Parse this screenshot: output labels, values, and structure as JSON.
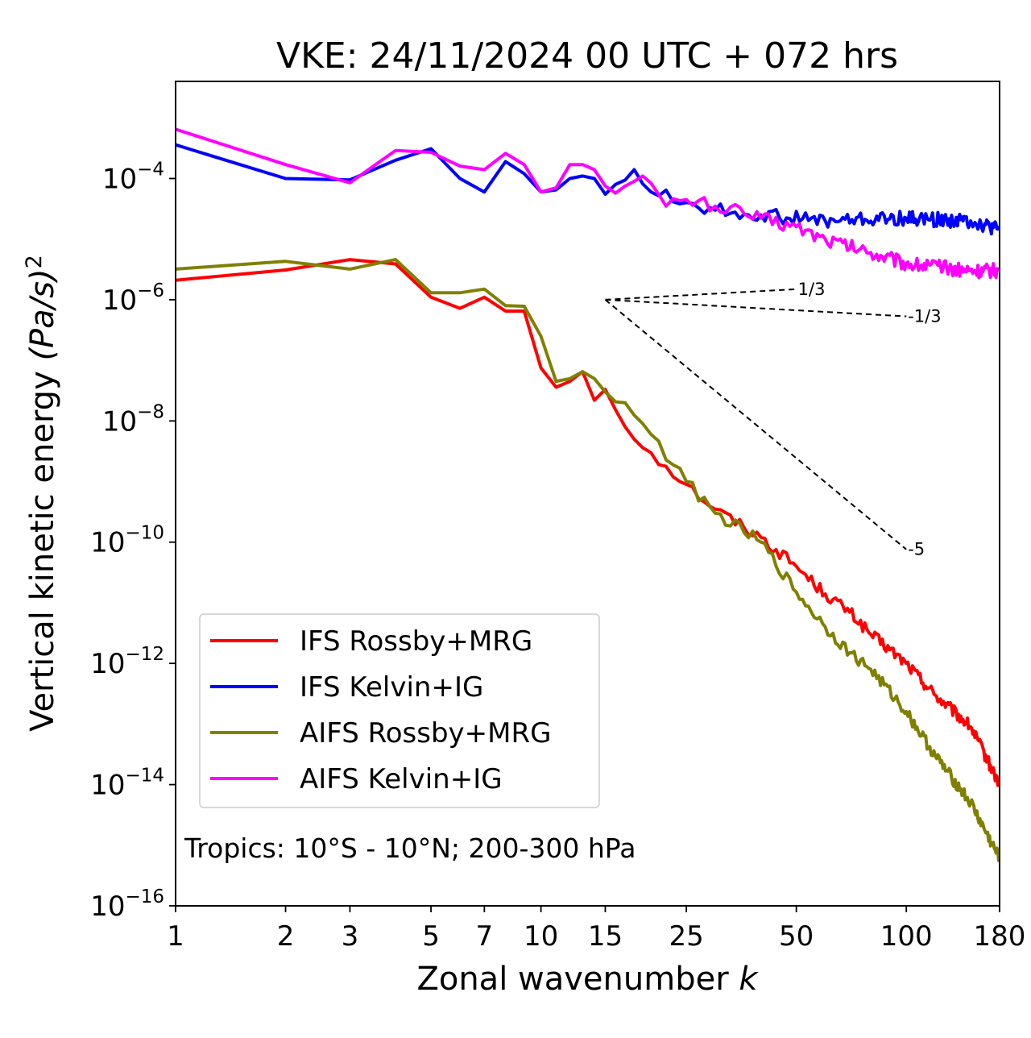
{
  "chart_data": {
    "type": "line",
    "title": "VKE: 24/11/2024 00 UTC + 072 hrs",
    "xlabel": "Zonal wavenumber",
    "xlabel_var": "k",
    "ylabel": "Vertical kinetic energy",
    "ylabel_unit": "(Pa/s)",
    "ylabel_unit_exp": "2",
    "x_scale": "log",
    "y_scale": "log",
    "xlim": [
      1,
      180
    ],
    "ylim": [
      1e-16,
      0.004
    ],
    "xticks": [
      1,
      2,
      3,
      5,
      7,
      10,
      15,
      25,
      50,
      100,
      180
    ],
    "xtick_labels": [
      "1",
      "2",
      "3",
      "5",
      "7",
      "10",
      "15",
      "25",
      "50",
      "100",
      "180"
    ],
    "yticks": [
      -4,
      -6,
      -8,
      -10,
      -12,
      -14,
      -16
    ],
    "ytick_base": "10",
    "ytick_exps": [
      "−4",
      "−6",
      "−8",
      "−10",
      "−12",
      "−14",
      "−16"
    ],
    "annotation": "Tropics: 10°S - 10°N; 200-300 hPa",
    "legend_position": "lower-left",
    "reference_lines": [
      {
        "label": "1/3",
        "slope": 0.3333,
        "x_start": 15,
        "x_end": 50,
        "y_start": 1e-06
      },
      {
        "label": "-1/3",
        "slope": -0.3333,
        "x_start": 15,
        "x_end": 100,
        "y_start": 1e-06
      },
      {
        "label": "-5",
        "slope": -5,
        "x_start": 15,
        "x_end": 100,
        "y_start": 1e-06
      }
    ],
    "series": [
      {
        "name": "IFS Rossby+MRG",
        "color": "#ff0000",
        "anchors": [
          [
            1,
            2.1e-06
          ],
          [
            2,
            3.1e-06
          ],
          [
            3,
            4.6e-06
          ],
          [
            4,
            3.9e-06
          ],
          [
            5,
            1.1e-06
          ],
          [
            6,
            7.2e-07
          ],
          [
            7,
            1.1e-06
          ],
          [
            8,
            6.5e-07
          ],
          [
            9,
            6.5e-07
          ],
          [
            10,
            7.5e-08
          ],
          [
            11,
            3.6e-08
          ],
          [
            12,
            4.5e-08
          ],
          [
            13,
            6.5e-08
          ],
          [
            14,
            2.2e-08
          ],
          [
            15,
            3.3e-08
          ],
          [
            17,
            8e-09
          ],
          [
            20,
            3e-09
          ],
          [
            25,
            9e-10
          ],
          [
            30,
            3.5e-10
          ],
          [
            40,
            1.2e-10
          ],
          [
            50,
            4e-11
          ],
          [
            60,
            1.4e-11
          ],
          [
            70,
            7e-12
          ],
          [
            80,
            3e-12
          ],
          [
            100,
            1e-12
          ],
          [
            120,
            3e-13
          ],
          [
            150,
            9e-14
          ],
          [
            180,
            1e-14
          ]
        ],
        "noise": 0.1
      },
      {
        "name": "IFS Kelvin+IG",
        "color": "#0000ff",
        "anchors": [
          [
            1,
            0.00036
          ],
          [
            2,
            0.0001
          ],
          [
            3,
            9.5e-05
          ],
          [
            4,
            0.0002
          ],
          [
            5,
            0.00031
          ],
          [
            6,
            0.0001
          ],
          [
            7,
            6e-05
          ],
          [
            8,
            0.00019
          ],
          [
            9,
            0.00012
          ],
          [
            10,
            6e-05
          ],
          [
            11,
            6.5e-05
          ],
          [
            12,
            0.0001
          ],
          [
            13,
            0.00011
          ],
          [
            14,
            0.0001
          ],
          [
            15,
            5.5e-05
          ],
          [
            16,
            8e-05
          ],
          [
            18,
            0.00014
          ],
          [
            20,
            6e-05
          ],
          [
            25,
            4e-05
          ],
          [
            30,
            3e-05
          ],
          [
            40,
            2.5e-05
          ],
          [
            60,
            2e-05
          ],
          [
            100,
            2.2e-05
          ],
          [
            150,
            2e-05
          ],
          [
            180,
            1.4e-05
          ]
        ],
        "noise": 0.12
      },
      {
        "name": "AIFS Rossby+MRG",
        "color": "#808000",
        "anchors": [
          [
            1,
            3.2e-06
          ],
          [
            2,
            4.3e-06
          ],
          [
            3,
            3.2e-06
          ],
          [
            4,
            4.6e-06
          ],
          [
            5,
            1.3e-06
          ],
          [
            6,
            1.3e-06
          ],
          [
            7,
            1.5e-06
          ],
          [
            8,
            8e-07
          ],
          [
            9,
            7.8e-07
          ],
          [
            10,
            2.5e-07
          ],
          [
            11,
            4.5e-08
          ],
          [
            12,
            5e-08
          ],
          [
            13,
            6.5e-08
          ],
          [
            14,
            5e-08
          ],
          [
            15,
            3e-08
          ],
          [
            17,
            2e-08
          ],
          [
            20,
            6e-09
          ],
          [
            25,
            1e-09
          ],
          [
            30,
            3e-10
          ],
          [
            40,
            1e-10
          ],
          [
            50,
            1.5e-11
          ],
          [
            60,
            4e-12
          ],
          [
            70,
            1.5e-12
          ],
          [
            80,
            8e-13
          ],
          [
            100,
            1.6e-13
          ],
          [
            120,
            3e-14
          ],
          [
            150,
            5e-15
          ],
          [
            180,
            6e-16
          ]
        ],
        "noise": 0.1
      },
      {
        "name": "AIFS Kelvin+IG",
        "color": "#ff00ff",
        "anchors": [
          [
            1,
            0.00065
          ],
          [
            2,
            0.00017
          ],
          [
            3,
            8.5e-05
          ],
          [
            4,
            0.00029
          ],
          [
            5,
            0.00027
          ],
          [
            6,
            0.00016
          ],
          [
            7,
            0.00014
          ],
          [
            8,
            0.00026
          ],
          [
            9,
            0.00017
          ],
          [
            10,
            6e-05
          ],
          [
            11,
            7e-05
          ],
          [
            12,
            0.00017
          ],
          [
            13,
            0.00017
          ],
          [
            14,
            0.00014
          ],
          [
            15,
            7.5e-05
          ],
          [
            17,
            7.5e-05
          ],
          [
            19,
            0.00011
          ],
          [
            22,
            3.5e-05
          ],
          [
            25,
            4.5e-05
          ],
          [
            30,
            3.5e-05
          ],
          [
            40,
            2.2e-05
          ],
          [
            50,
            1.6e-05
          ],
          [
            60,
            1e-05
          ],
          [
            80,
            6e-06
          ],
          [
            100,
            4e-06
          ],
          [
            150,
            3e-06
          ],
          [
            180,
            3e-06
          ]
        ],
        "noise": 0.12
      }
    ]
  }
}
